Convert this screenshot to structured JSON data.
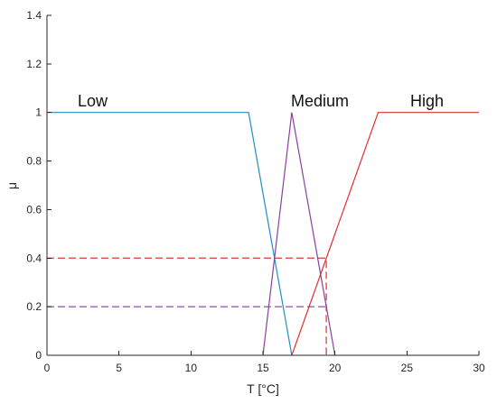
{
  "chart_data": {
    "type": "line",
    "xlabel": "T [°C]",
    "ylabel": "μ",
    "xlim": [
      0,
      30
    ],
    "ylim": [
      0,
      1.4
    ],
    "x_ticks": [
      "0",
      "5",
      "10",
      "15",
      "20",
      "25",
      "30"
    ],
    "y_ticks": [
      "0",
      "0.2",
      "0.4",
      "0.6",
      "0.8",
      "1",
      "1.2",
      "1.4"
    ],
    "grid": false,
    "series": [
      {
        "name": "Low",
        "color": "#1f8fc0",
        "points": [
          [
            0,
            1
          ],
          [
            14,
            1
          ],
          [
            17,
            0
          ]
        ]
      },
      {
        "name": "Medium",
        "color": "#8c3f9f",
        "points": [
          [
            15,
            0
          ],
          [
            17,
            1
          ],
          [
            20,
            0
          ]
        ]
      },
      {
        "name": "High",
        "color": "#e03030",
        "points": [
          [
            17,
            0
          ],
          [
            23,
            1
          ],
          [
            30,
            1
          ]
        ]
      }
    ],
    "annotations": [
      {
        "style": "dashed",
        "color": "#e05a5a",
        "points": [
          [
            0,
            0.4
          ],
          [
            19.4,
            0.4
          ],
          [
            19.4,
            0
          ]
        ]
      },
      {
        "style": "dashed",
        "color": "#a66ab8",
        "points": [
          [
            0,
            0.2
          ],
          [
            19.4,
            0.2
          ]
        ]
      }
    ]
  }
}
